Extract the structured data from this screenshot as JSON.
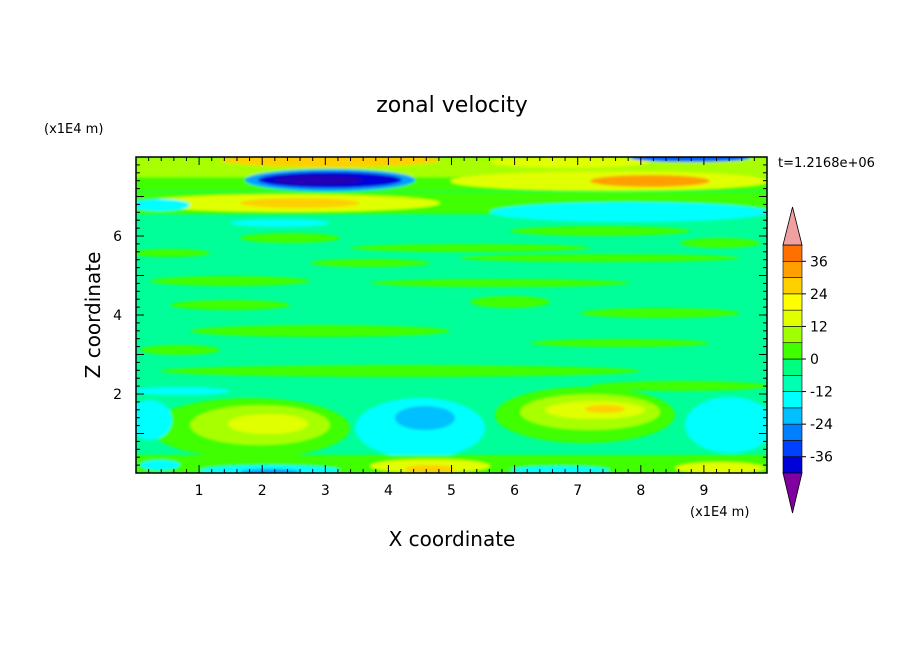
{
  "chart_data": {
    "type": "heatmap",
    "title": "zonal velocity",
    "xlabel": "X coordinate",
    "ylabel": "Z coordinate",
    "x_unit": "(x1E4 m)",
    "y_unit": "(x1E4 m)",
    "time_label": "t=1.2168e+06",
    "xlim": [
      0,
      10
    ],
    "ylim": [
      0,
      8
    ],
    "x_ticks": [
      "1",
      "2",
      "3",
      "4",
      "5",
      "6",
      "7",
      "8",
      "9"
    ],
    "y_ticks": [
      "2",
      "4",
      "6"
    ],
    "colorbar": {
      "min": -42,
      "max": 42,
      "step": 6,
      "tick_labels": [
        "36",
        "24",
        "12",
        "0",
        "-12",
        "-24",
        "-36"
      ],
      "colors": [
        "#8000a0",
        "#5000a8",
        "#2200b4",
        "#0000d8",
        "#0040ff",
        "#0080ff",
        "#00c0ff",
        "#00ffff",
        "#00ffb0",
        "#00ff80",
        "#40ff00",
        "#a0ff00",
        "#e0ff00",
        "#ffff00",
        "#ffd000",
        "#ffa000",
        "#ff7000",
        "#ff4000",
        "#ff0000",
        "#e00000",
        "#f0a0a0"
      ],
      "extend": "both"
    },
    "features": [
      {
        "x": 3.0,
        "z": 7.4,
        "value": -36,
        "description": "jet"
      },
      {
        "x": 2.0,
        "z": 6.8,
        "value": 12
      },
      {
        "x": 8.5,
        "z": 7.3,
        "value": 18
      },
      {
        "x": 2.0,
        "z": 1.3,
        "value": 12
      },
      {
        "x": 7.3,
        "z": 1.5,
        "value": 18
      },
      {
        "x": 4.7,
        "z": 1.1,
        "value": -12
      },
      {
        "x": 9.5,
        "z": 1.2,
        "value": -12
      },
      {
        "x": 4.7,
        "z": 0.2,
        "value": 18
      },
      {
        "x": 2.0,
        "z": 0.1,
        "value": -18
      }
    ]
  }
}
